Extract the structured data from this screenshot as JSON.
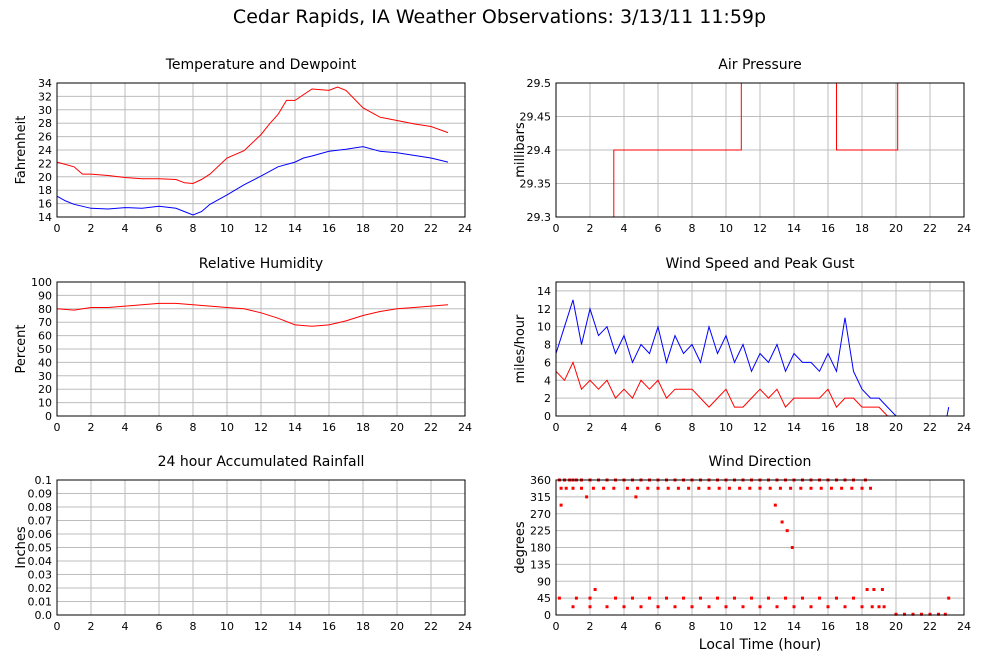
{
  "page": {
    "title": "Cedar Rapids, IA Weather Observations: 3/13/11 11:59p"
  },
  "chart_data": [
    {
      "id": "temp",
      "type": "line",
      "title": "Temperature and Dewpoint",
      "ylabel": "Fahrenheit",
      "xlabel": "",
      "xlim": [
        0,
        24
      ],
      "ylim": [
        14,
        34
      ],
      "xticks": [
        0,
        2,
        4,
        6,
        8,
        10,
        12,
        14,
        16,
        18,
        20,
        22,
        24
      ],
      "yticks": [
        14,
        16,
        18,
        20,
        22,
        24,
        26,
        28,
        30,
        32,
        34
      ],
      "grid": true,
      "series": [
        {
          "color": "#ff0000",
          "x": [
            0,
            1,
            1.5,
            2,
            3,
            4,
            5,
            6,
            7,
            7.5,
            8,
            8.5,
            9,
            10,
            11,
            12,
            12.5,
            13,
            13.5,
            14,
            15,
            16,
            16.5,
            17,
            18,
            19,
            20,
            21,
            22,
            23
          ],
          "values": [
            22.2,
            21.5,
            20.4,
            20.4,
            20.2,
            19.9,
            19.7,
            19.7,
            19.6,
            19.1,
            19.0,
            19.6,
            20.4,
            22.8,
            23.9,
            26.3,
            27.9,
            29.3,
            31.4,
            31.4,
            33.1,
            32.9,
            33.4,
            32.9,
            30.3,
            28.9,
            28.4,
            27.9,
            27.5,
            26.6
          ]
        },
        {
          "color": "#0000ff",
          "x": [
            0,
            0.5,
            1,
            2,
            3,
            4,
            5,
            6,
            7,
            7.5,
            8,
            8.5,
            9,
            10,
            11,
            12,
            13,
            14,
            14.5,
            15,
            16,
            17,
            18,
            19,
            20,
            21,
            22,
            23
          ],
          "values": [
            17.1,
            16.4,
            15.9,
            15.3,
            15.2,
            15.4,
            15.3,
            15.6,
            15.3,
            14.8,
            14.3,
            14.8,
            15.9,
            17.3,
            18.8,
            20.1,
            21.5,
            22.2,
            22.8,
            23.1,
            23.8,
            24.1,
            24.5,
            23.8,
            23.6,
            23.2,
            22.8,
            22.2
          ]
        }
      ]
    },
    {
      "id": "pressure",
      "type": "line",
      "title": "Air Pressure",
      "ylabel": "millibars",
      "xlabel": "",
      "xlim": [
        0,
        24
      ],
      "ylim": [
        29.3,
        29.5
      ],
      "xticks": [
        0,
        2,
        4,
        6,
        8,
        10,
        12,
        14,
        16,
        18,
        20,
        22,
        24
      ],
      "yticks": [
        "29.3",
        "29.35",
        "29.4",
        "29.45",
        "29.5"
      ],
      "grid": true,
      "series": [
        {
          "color": "#ff0000",
          "x": [
            0,
            3.4,
            3.4,
            3.5,
            3.5,
            10.9,
            10.9,
            16.5,
            16.5,
            16.7,
            16.7,
            20.1,
            20.1,
            23.0
          ],
          "values": [
            29.3,
            29.3,
            29.4,
            29.4,
            29.4,
            29.4,
            29.5,
            29.5,
            29.4,
            29.4,
            29.4,
            29.4,
            29.5,
            29.5
          ]
        }
      ]
    },
    {
      "id": "humidity",
      "type": "line",
      "title": "Relative Humidity",
      "ylabel": "Percent",
      "xlabel": "",
      "xlim": [
        0,
        24
      ],
      "ylim": [
        0,
        100
      ],
      "xticks": [
        0,
        2,
        4,
        6,
        8,
        10,
        12,
        14,
        16,
        18,
        20,
        22,
        24
      ],
      "yticks": [
        0,
        10,
        20,
        30,
        40,
        50,
        60,
        70,
        80,
        90,
        100
      ],
      "grid": true,
      "series": [
        {
          "color": "#ff0000",
          "x": [
            0,
            1,
            2,
            3,
            4,
            5,
            6,
            7,
            8,
            9,
            10,
            11,
            12,
            13,
            14,
            15,
            16,
            17,
            18,
            19,
            20,
            21,
            22,
            23
          ],
          "values": [
            80,
            79,
            81,
            81,
            82,
            83,
            84,
            84,
            83,
            82,
            81,
            80,
            77,
            73,
            68,
            67,
            68,
            71,
            75,
            78,
            80,
            81,
            82,
            83
          ]
        }
      ]
    },
    {
      "id": "wind",
      "type": "line",
      "title": "Wind Speed and Peak Gust",
      "ylabel": "miles/hour",
      "xlabel": "",
      "xlim": [
        0,
        24
      ],
      "ylim": [
        0,
        15
      ],
      "xticks": [
        0,
        2,
        4,
        6,
        8,
        10,
        12,
        14,
        16,
        18,
        20,
        22,
        24
      ],
      "yticks": [
        0,
        2,
        4,
        6,
        8,
        10,
        12,
        14
      ],
      "grid": true,
      "series": [
        {
          "color": "#0000ff",
          "x": [
            0,
            0.5,
            1,
            1.5,
            2,
            2.5,
            3,
            3.5,
            4,
            4.5,
            5,
            5.5,
            6,
            6.5,
            7,
            7.5,
            8,
            8.5,
            9,
            9.5,
            10,
            10.5,
            11,
            11.5,
            12,
            12.5,
            13,
            13.5,
            14,
            14.5,
            15,
            15.5,
            16,
            16.5,
            17,
            17.5,
            18,
            18.5,
            19,
            19.5,
            20,
            21,
            22,
            23,
            23.1
          ],
          "values": [
            7,
            10,
            13,
            8,
            12,
            9,
            10,
            7,
            9,
            6,
            8,
            7,
            10,
            6,
            9,
            7,
            8,
            6,
            10,
            7,
            9,
            6,
            8,
            5,
            7,
            6,
            8,
            5,
            7,
            6,
            6,
            5,
            7,
            5,
            11,
            5,
            3,
            2,
            2,
            1,
            0,
            0,
            0,
            0,
            1
          ]
        },
        {
          "color": "#ff0000",
          "x": [
            0,
            0.5,
            1,
            1.5,
            2,
            2.5,
            3,
            3.5,
            4,
            4.5,
            5,
            5.5,
            6,
            6.5,
            7,
            7.5,
            8,
            8.5,
            9,
            9.5,
            10,
            10.5,
            11,
            11.5,
            12,
            12.5,
            13,
            13.5,
            14,
            14.5,
            15,
            15.5,
            16,
            16.5,
            17,
            17.5,
            18,
            18.5,
            19,
            19.5,
            20,
            21,
            22,
            23
          ],
          "values": [
            5,
            4,
            6,
            3,
            4,
            3,
            4,
            2,
            3,
            2,
            4,
            3,
            4,
            2,
            3,
            3,
            3,
            2,
            1,
            2,
            3,
            1,
            1,
            2,
            3,
            2,
            3,
            1,
            2,
            2,
            2,
            2,
            3,
            1,
            2,
            2,
            1,
            1,
            1,
            0,
            0,
            0,
            0,
            0
          ]
        }
      ]
    },
    {
      "id": "rain",
      "type": "line",
      "title": "24 hour Accumulated Rainfall",
      "ylabel": "Inches",
      "xlabel": "",
      "xlim": [
        0,
        24
      ],
      "ylim": [
        0,
        0.1
      ],
      "xticks": [
        0,
        2,
        4,
        6,
        8,
        10,
        12,
        14,
        16,
        18,
        20,
        22,
        24
      ],
      "yticks": [
        "0.0",
        "0.01",
        "0.02",
        "0.03",
        "0.04",
        "0.05",
        "0.06",
        "0.07",
        "0.08",
        "0.09",
        "0.1"
      ],
      "grid": true,
      "series": [
        {
          "color": "#ff0000",
          "x": [
            0,
            23
          ],
          "values": [
            0,
            0
          ]
        }
      ]
    },
    {
      "id": "winddir",
      "type": "scatter",
      "title": "Wind Direction",
      "ylabel": "degrees",
      "xlabel": "Local Time (hour)",
      "xlim": [
        0,
        24
      ],
      "ylim": [
        0,
        360
      ],
      "xticks": [
        0,
        2,
        4,
        6,
        8,
        10,
        12,
        14,
        16,
        18,
        20,
        22,
        24
      ],
      "yticks": [
        0,
        45,
        90,
        135,
        180,
        225,
        270,
        315,
        360
      ],
      "grid": true,
      "series": [
        {
          "color": "#ff0000",
          "x": [
            0.2,
            0.5,
            0.8,
            1.0,
            1.2,
            1.5,
            2.0,
            2.5,
            3.0,
            3.5,
            4.0,
            4.5,
            5.0,
            5.5,
            6.0,
            6.5,
            7.0,
            7.5,
            8.0,
            8.5,
            9.0,
            9.5,
            10.0,
            10.5,
            11.0,
            11.5,
            12.0,
            12.5,
            13.0,
            13.5,
            14.0,
            14.5,
            15.0,
            15.5,
            16.0,
            16.5,
            17.0,
            17.5,
            18.2,
            0.3,
            0.6,
            1.0,
            1.5,
            2.2,
            2.8,
            3.4,
            4.2,
            4.8,
            5.4,
            6.0,
            6.6,
            7.2,
            7.8,
            8.4,
            9.0,
            9.6,
            10.2,
            10.8,
            11.4,
            12.0,
            12.6,
            13.2,
            13.8,
            14.4,
            15.0,
            15.6,
            16.2,
            16.8,
            17.4,
            18.0,
            18.5,
            1.0,
            2.0,
            3.0,
            4.0,
            5.0,
            6.0,
            7.0,
            8.0,
            9.0,
            10.0,
            11.0,
            12.0,
            13.0,
            14.0,
            15.0,
            16.0,
            17.0,
            18.0,
            18.6,
            19.0,
            19.3,
            0.2,
            1.2,
            2.0,
            3.5,
            4.5,
            5.5,
            6.5,
            7.5,
            8.5,
            9.5,
            10.5,
            11.5,
            12.5,
            13.5,
            14.5,
            15.5,
            16.5,
            17.5,
            18.3,
            18.7,
            19.2,
            0.3,
            1.8,
            2.3,
            4.7,
            12.9,
            13.3,
            13.6,
            13.9,
            20.0,
            20.5,
            21.0,
            21.5,
            22.0,
            22.5,
            22.9,
            23.1
          ],
          "values": [
            360,
            360,
            360,
            360,
            360,
            360,
            360,
            360,
            360,
            360,
            360,
            360,
            360,
            360,
            360,
            360,
            360,
            360,
            360,
            360,
            360,
            360,
            360,
            360,
            360,
            360,
            360,
            360,
            360,
            360,
            360,
            360,
            360,
            360,
            360,
            360,
            360,
            360,
            360,
            338,
            338,
            338,
            338,
            338,
            338,
            338,
            338,
            338,
            338,
            338,
            338,
            338,
            338,
            338,
            338,
            338,
            338,
            338,
            338,
            338,
            338,
            338,
            338,
            338,
            338,
            338,
            338,
            338,
            338,
            338,
            338,
            22,
            22,
            22,
            22,
            22,
            22,
            22,
            22,
            22,
            22,
            22,
            22,
            22,
            22,
            22,
            22,
            22,
            22,
            22,
            22,
            22,
            45,
            45,
            45,
            45,
            45,
            45,
            45,
            45,
            45,
            45,
            45,
            45,
            45,
            45,
            45,
            45,
            45,
            45,
            68,
            68,
            68,
            293,
            315,
            68,
            315,
            293,
            248,
            225,
            180,
            2,
            2,
            2,
            2,
            2,
            2,
            2,
            45
          ]
        }
      ]
    }
  ]
}
